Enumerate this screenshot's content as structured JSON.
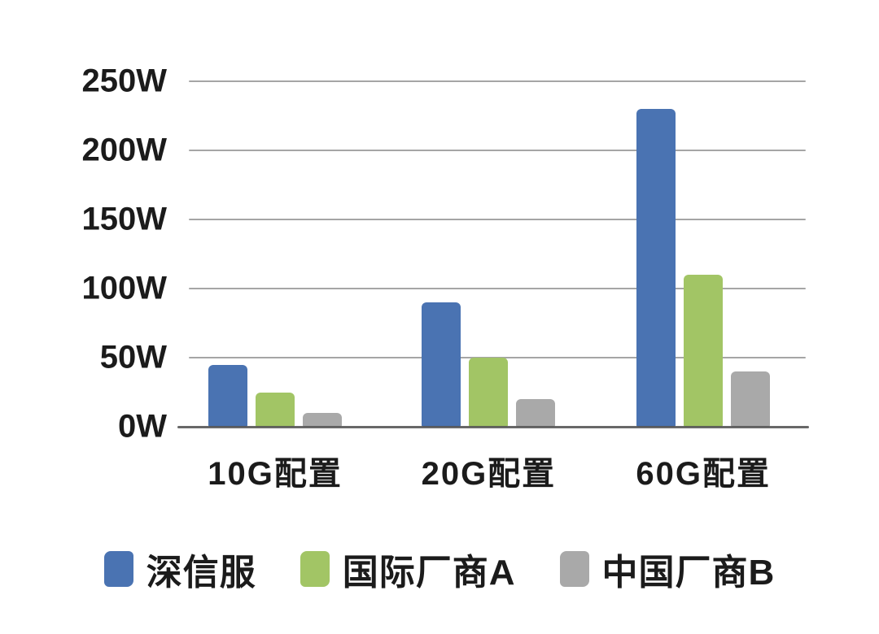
{
  "chart_data": {
    "type": "bar",
    "title": "",
    "categories": [
      "10G配置",
      "20G配置",
      "60G配置"
    ],
    "series": [
      {
        "name": "深信服",
        "color": "#4A73B2",
        "values": [
          45,
          90,
          230
        ]
      },
      {
        "name": "国际厂商A",
        "color": "#A2C565",
        "values": [
          25,
          50,
          110
        ]
      },
      {
        "name": "中国厂商B",
        "color": "#A9A9A9",
        "values": [
          10,
          20,
          40
        ]
      }
    ],
    "unit": "W",
    "y_ticks": [
      {
        "value": 250,
        "label": "250W"
      },
      {
        "value": 200,
        "label": "200W"
      },
      {
        "value": 150,
        "label": "150W"
      },
      {
        "value": 100,
        "label": "100W"
      },
      {
        "value": 50,
        "label": "50W"
      },
      {
        "value": 0,
        "label": "0W"
      }
    ],
    "ylim": [
      0,
      250
    ],
    "xlabel": "",
    "ylabel": "",
    "grid": true,
    "legend_position": "bottom",
    "background_color": "#FFFFFF",
    "text_color": "#1B1B1B",
    "gridline_color": "#6E6E6E"
  }
}
